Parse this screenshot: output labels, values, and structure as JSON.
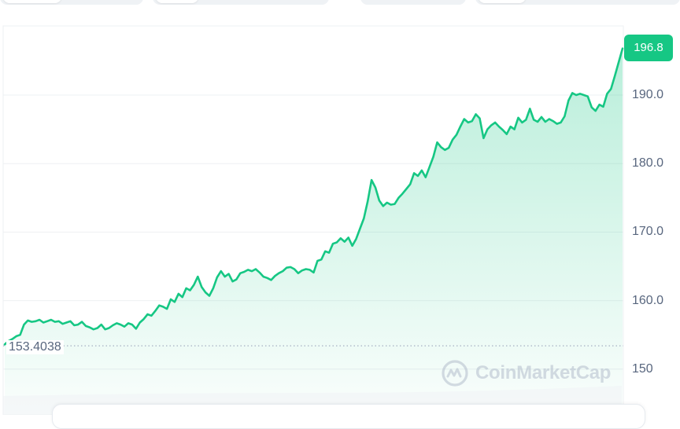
{
  "chart_data": {
    "type": "area",
    "x": [
      0,
      1,
      2,
      3,
      4,
      5,
      6,
      7,
      8,
      9,
      10,
      11,
      12,
      13,
      14,
      15,
      16,
      17,
      18,
      19,
      20,
      21,
      22,
      23,
      24,
      25,
      26,
      27,
      28,
      29,
      30,
      31,
      32,
      33,
      34,
      35,
      36,
      37,
      38,
      39,
      40,
      41,
      42,
      43,
      44,
      45,
      46,
      47,
      48,
      49,
      50,
      51,
      52,
      53,
      54,
      55,
      56,
      57,
      58,
      59,
      60,
      61,
      62,
      63,
      64,
      65,
      66,
      67,
      68,
      69,
      70,
      71,
      72,
      73,
      74,
      75,
      76,
      77,
      78,
      79,
      80,
      81,
      82,
      83,
      84,
      85,
      86,
      87,
      88,
      89,
      90,
      91,
      92,
      93,
      94,
      95,
      96,
      97,
      98,
      99,
      100,
      101,
      102,
      103,
      104,
      105,
      106,
      107,
      108,
      109,
      110,
      111,
      112,
      113,
      114,
      115,
      116,
      117,
      118,
      119,
      120,
      121,
      122,
      123,
      124,
      125,
      126,
      127,
      128,
      129,
      130,
      131,
      132,
      133,
      134,
      135,
      136,
      137,
      138,
      139,
      140,
      141,
      142,
      143,
      144,
      145,
      146,
      147,
      148,
      149,
      150,
      151,
      152,
      153,
      154,
      155,
      156,
      157,
      158,
      159,
      160
    ],
    "values": [
      153.6,
      154.1,
      154.4,
      154.8,
      155.0,
      156.5,
      157.1,
      156.9,
      157.0,
      157.2,
      156.8,
      157.0,
      157.2,
      156.9,
      157.0,
      156.6,
      156.8,
      157.0,
      156.4,
      156.5,
      156.9,
      156.3,
      156.1,
      155.8,
      156.0,
      156.5,
      155.8,
      156.0,
      156.4,
      156.7,
      156.5,
      156.2,
      156.7,
      156.5,
      155.9,
      156.8,
      157.3,
      158.0,
      157.8,
      158.5,
      159.3,
      159.1,
      158.8,
      160.2,
      159.8,
      161.0,
      160.5,
      161.8,
      161.5,
      162.3,
      163.5,
      162.0,
      161.2,
      160.7,
      161.8,
      163.4,
      164.3,
      163.5,
      163.9,
      162.8,
      163.1,
      164.0,
      164.2,
      164.5,
      164.3,
      164.6,
      164.1,
      163.5,
      163.3,
      163.0,
      163.6,
      164.0,
      164.3,
      164.8,
      164.9,
      164.6,
      164.0,
      164.4,
      164.6,
      164.5,
      164.1,
      165.8,
      166.0,
      167.2,
      167.0,
      168.3,
      168.5,
      169.1,
      168.6,
      169.2,
      168.0,
      169.0,
      170.5,
      172.0,
      174.5,
      177.6,
      176.5,
      174.6,
      173.8,
      174.3,
      174.0,
      174.1,
      175.0,
      175.6,
      176.3,
      177.0,
      178.6,
      178.2,
      179.0,
      178.0,
      179.5,
      181.0,
      183.1,
      182.4,
      182.0,
      182.3,
      183.5,
      184.2,
      185.4,
      186.5,
      186.0,
      186.2,
      187.2,
      186.6,
      183.7,
      185.0,
      185.6,
      186.0,
      185.4,
      184.9,
      184.3,
      185.4,
      185.0,
      186.7,
      186.0,
      186.4,
      188.0,
      186.4,
      186.1,
      186.8,
      186.1,
      186.5,
      186.2,
      185.8,
      186.0,
      186.9,
      189.2,
      190.3,
      190.0,
      190.2,
      190.0,
      189.8,
      188.2,
      187.7,
      188.6,
      188.3,
      190.2,
      190.9,
      192.8,
      194.8,
      196.8
    ],
    "ylim": [
      150,
      199
    ],
    "y_ticks": [
      "190.0",
      "180.0",
      "170.0",
      "160.0",
      "150"
    ],
    "baseline_value": 153.4038,
    "baseline_label": "153.4038",
    "current_value_label": "196.8",
    "grid": true,
    "watermark_text": "CoinMarketCap",
    "colors": {
      "line": "#16c784",
      "fill_top": "#16c784",
      "grid": "#eef0f3",
      "axis_text": "#58667e",
      "baseline": "#a6b0c3"
    }
  }
}
